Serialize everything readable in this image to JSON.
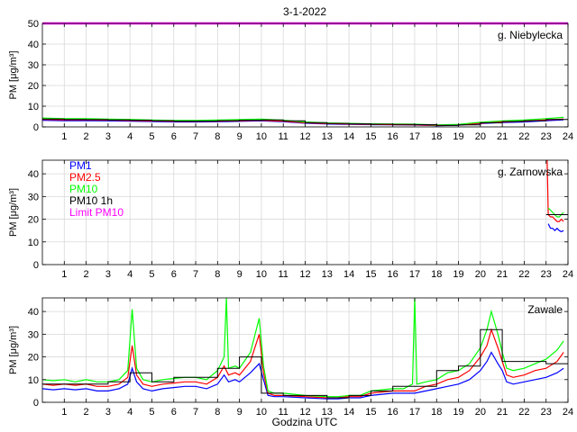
{
  "figure": {
    "title": "3-1-2022",
    "xlabel": "Godzina UTC"
  },
  "legend": {
    "entries": [
      {
        "label": "PM1",
        "color": "#0000ff"
      },
      {
        "label": "PM2.5",
        "color": "#ff0000"
      },
      {
        "label": "PM10",
        "color": "#00ff00"
      },
      {
        "label": "PM10 1h",
        "color": "#000000"
      },
      {
        "label": "Limit PM10",
        "color": "#ff00ff"
      }
    ]
  },
  "chart_data": [
    {
      "type": "line",
      "station": "g. Niebylecka",
      "ylabel": "PM [μg/m³]",
      "ylim": [
        0,
        50
      ],
      "yticks": [
        0,
        10,
        20,
        30,
        40,
        50
      ],
      "xlim": [
        0,
        24
      ],
      "xticks": [
        1,
        2,
        3,
        4,
        5,
        6,
        7,
        8,
        9,
        10,
        11,
        12,
        13,
        14,
        15,
        16,
        17,
        18,
        19,
        20,
        21,
        22,
        23,
        24
      ],
      "grid": true,
      "limit_line": 50,
      "series": [
        {
          "name": "PM1",
          "color": "#0000ff",
          "x": [
            0,
            1,
            2,
            3,
            4,
            5,
            6,
            7,
            8,
            9,
            10,
            11,
            12,
            13,
            14,
            15,
            16,
            17,
            18,
            19,
            20,
            21,
            22,
            23,
            23.8
          ],
          "y": [
            3.2,
            3.0,
            3.0,
            2.9,
            2.8,
            2.6,
            2.4,
            2.4,
            2.5,
            2.7,
            2.9,
            2.5,
            1.8,
            1.4,
            1.2,
            1.1,
            1.0,
            0.9,
            0.6,
            0.8,
            1.6,
            2.1,
            2.4,
            3.0,
            3.4
          ]
        },
        {
          "name": "PM2.5",
          "color": "#ff0000",
          "x": [
            0,
            1,
            2,
            3,
            4,
            5,
            6,
            7,
            8,
            9,
            10,
            11,
            12,
            13,
            14,
            15,
            16,
            17,
            18,
            19,
            20,
            21,
            22,
            23,
            23.8
          ],
          "y": [
            3.6,
            3.4,
            3.4,
            3.3,
            3.1,
            2.9,
            2.7,
            2.7,
            2.8,
            3.0,
            3.2,
            2.8,
            2.0,
            1.6,
            1.4,
            1.2,
            1.1,
            1.0,
            0.7,
            0.9,
            1.8,
            2.4,
            2.8,
            3.4,
            3.8
          ]
        },
        {
          "name": "PM10",
          "color": "#00ff00",
          "x": [
            0,
            1,
            2,
            3,
            4,
            5,
            6,
            7,
            8,
            9,
            10,
            11,
            12,
            13,
            14,
            15,
            16,
            17,
            18,
            19,
            20,
            21,
            22,
            23,
            23.8
          ],
          "y": [
            4.3,
            4.0,
            4.0,
            3.8,
            3.6,
            3.3,
            3.1,
            3.1,
            3.3,
            3.5,
            3.8,
            3.2,
            2.4,
            1.9,
            1.7,
            1.5,
            1.4,
            1.3,
            0.9,
            1.2,
            2.2,
            2.9,
            3.3,
            4.0,
            4.6
          ]
        },
        {
          "name": "PM10 1h",
          "color": "#000000",
          "x": [
            0,
            1,
            2,
            3,
            4,
            5,
            6,
            7,
            8,
            9,
            10,
            11,
            12,
            13,
            14,
            15,
            16,
            17,
            18,
            19,
            20,
            21,
            22,
            23,
            24
          ],
          "y": [
            3.8,
            3.6,
            3.5,
            3.4,
            3.2,
            3.0,
            2.8,
            2.8,
            3.0,
            3.2,
            3.4,
            2.9,
            2.1,
            1.7,
            1.5,
            1.3,
            1.2,
            1.1,
            0.8,
            1.0,
            2.0,
            2.6,
            3.0,
            3.6,
            4.2
          ],
          "step": true
        }
      ]
    },
    {
      "type": "line",
      "station": "g. Zarnowska",
      "ylabel": "PM [μg/m³]",
      "ylim": [
        0,
        46
      ],
      "yticks": [
        0,
        10,
        20,
        30,
        40
      ],
      "xlim": [
        0,
        24
      ],
      "xticks": [
        1,
        2,
        3,
        4,
        5,
        6,
        7,
        8,
        9,
        10,
        11,
        12,
        13,
        14,
        15,
        16,
        17,
        18,
        19,
        20,
        21,
        22,
        23,
        24
      ],
      "grid": true,
      "series": [
        {
          "name": "PM1",
          "color": "#0000ff",
          "x": [
            23.1,
            23.2,
            23.3,
            23.4,
            23.5,
            23.6,
            23.7,
            23.8
          ],
          "y": [
            18,
            16,
            16,
            15,
            16,
            15,
            14.5,
            15
          ]
        },
        {
          "name": "PM2.5",
          "color": "#ff0000",
          "x": [
            23.05,
            23.08,
            23.1,
            23.2,
            23.3,
            23.4,
            23.5,
            23.6,
            23.7,
            23.8
          ],
          "y": [
            46,
            30,
            22,
            21,
            21,
            20,
            19,
            19,
            20,
            19
          ]
        },
        {
          "name": "PM10",
          "color": "#00ff00",
          "x": [
            23.1,
            23.2,
            23.3,
            23.4,
            23.5,
            23.6,
            23.7,
            23.8
          ],
          "y": [
            25,
            24,
            23,
            22,
            21,
            21,
            22,
            23
          ]
        },
        {
          "name": "PM10 1h",
          "color": "#000000",
          "x": [
            23,
            24
          ],
          "y": [
            22,
            22
          ],
          "step": true
        }
      ]
    },
    {
      "type": "line",
      "station": "Zawale",
      "ylabel": "PM [μg/m³]",
      "xlabel": "Godzina UTC",
      "ylim": [
        0,
        46
      ],
      "yticks": [
        0,
        10,
        20,
        30,
        40
      ],
      "xlim": [
        0,
        24
      ],
      "xticks": [
        1,
        2,
        3,
        4,
        5,
        6,
        7,
        8,
        9,
        10,
        11,
        12,
        13,
        14,
        15,
        16,
        17,
        18,
        19,
        20,
        21,
        22,
        23,
        24
      ],
      "grid": true,
      "series": [
        {
          "name": "PM1",
          "color": "#0000ff",
          "x": [
            0,
            0.5,
            1,
            1.5,
            2,
            2.5,
            3,
            3.5,
            3.9,
            4.1,
            4.3,
            4.6,
            5,
            5.5,
            6,
            6.5,
            7,
            7.5,
            8,
            8.3,
            8.5,
            8.8,
            9,
            9.5,
            9.9,
            10.1,
            10.3,
            10.6,
            11,
            12,
            13,
            13.5,
            14,
            14.5,
            15,
            16,
            16.5,
            17,
            17.5,
            18,
            18.5,
            19,
            19.5,
            20,
            20.3,
            20.5,
            20.8,
            21,
            21.2,
            21.5,
            22,
            22.5,
            23,
            23.5,
            23.8
          ],
          "y": [
            6,
            5.5,
            6,
            5.5,
            6,
            5,
            5,
            6,
            8,
            15,
            9,
            6,
            5,
            6,
            6.5,
            7,
            7,
            6,
            8,
            12,
            9,
            10,
            9,
            13,
            17,
            10,
            3,
            2.5,
            2.5,
            2,
            1.5,
            1.5,
            2,
            2,
            3,
            4,
            4,
            4,
            5,
            6,
            7,
            8,
            10,
            14,
            18,
            22,
            17,
            14,
            9,
            8,
            9,
            10,
            11,
            13,
            15
          ]
        },
        {
          "name": "PM2.5",
          "color": "#ff0000",
          "x": [
            0,
            0.5,
            1,
            1.5,
            2,
            2.5,
            3,
            3.5,
            3.9,
            4.1,
            4.3,
            4.6,
            5,
            5.5,
            6,
            6.5,
            7,
            7.5,
            8,
            8.3,
            8.5,
            8.8,
            9,
            9.5,
            9.9,
            10.1,
            10.3,
            10.6,
            11,
            12,
            13,
            13.5,
            14,
            14.5,
            15,
            16,
            16.5,
            17,
            17.5,
            18,
            18.5,
            19,
            19.5,
            20,
            20.3,
            20.5,
            20.8,
            21,
            21.2,
            21.5,
            22,
            22.5,
            23,
            23.5,
            23.8
          ],
          "y": [
            8,
            7.5,
            8,
            7.5,
            8,
            7,
            7,
            8,
            11,
            25,
            12,
            8,
            7,
            8,
            8.5,
            9,
            9,
            8,
            11,
            16,
            12,
            13,
            12,
            18,
            30,
            13,
            4,
            3,
            3,
            2.5,
            2,
            2,
            2.5,
            2.5,
            4,
            5,
            5,
            5,
            7,
            8,
            10,
            11,
            14,
            20,
            25,
            32,
            24,
            18,
            12,
            11,
            12,
            14,
            15,
            18,
            22
          ]
        },
        {
          "name": "PM10",
          "color": "#00ff00",
          "x": [
            0,
            0.5,
            1,
            1.5,
            2,
            2.5,
            3,
            3.5,
            3.9,
            4.1,
            4.3,
            4.6,
            5,
            5.5,
            6,
            6.5,
            7,
            7.5,
            8,
            8.3,
            8.4,
            8.5,
            8.8,
            9,
            9.5,
            9.9,
            10.1,
            10.3,
            10.6,
            11,
            12,
            13,
            13.5,
            14,
            14.5,
            15,
            16,
            16.5,
            16.9,
            17,
            17.1,
            17.5,
            18,
            18.5,
            19,
            19.5,
            20,
            20.3,
            20.5,
            20.8,
            21,
            21.2,
            21.5,
            22,
            22.5,
            23,
            23.5,
            23.8
          ],
          "y": [
            10,
            9.5,
            10,
            9,
            10,
            9,
            9,
            10,
            14,
            41,
            15,
            10,
            9,
            10,
            10.5,
            11,
            11,
            10,
            14,
            20,
            46,
            15,
            16,
            15,
            22,
            37,
            16,
            5,
            4,
            4,
            3,
            2.5,
            2.5,
            3,
            3,
            5,
            6,
            6,
            8,
            46,
            8,
            9,
            10,
            13,
            14,
            17,
            24,
            32,
            40,
            30,
            22,
            15,
            14,
            15,
            17,
            19,
            23,
            27
          ]
        },
        {
          "name": "PM10 1h",
          "color": "#000000",
          "x": [
            0,
            1,
            2,
            3,
            4,
            5,
            6,
            7,
            8,
            9,
            10,
            11,
            12,
            13,
            14,
            15,
            16,
            17,
            18,
            19,
            20,
            21,
            22,
            23,
            24
          ],
          "y": [
            8,
            8,
            8,
            9,
            13,
            9,
            11,
            11,
            15,
            20,
            4,
            3,
            3,
            2,
            3,
            5,
            7,
            7,
            14,
            16,
            32,
            18,
            18,
            17,
            24
          ],
          "step": true
        }
      ]
    }
  ]
}
